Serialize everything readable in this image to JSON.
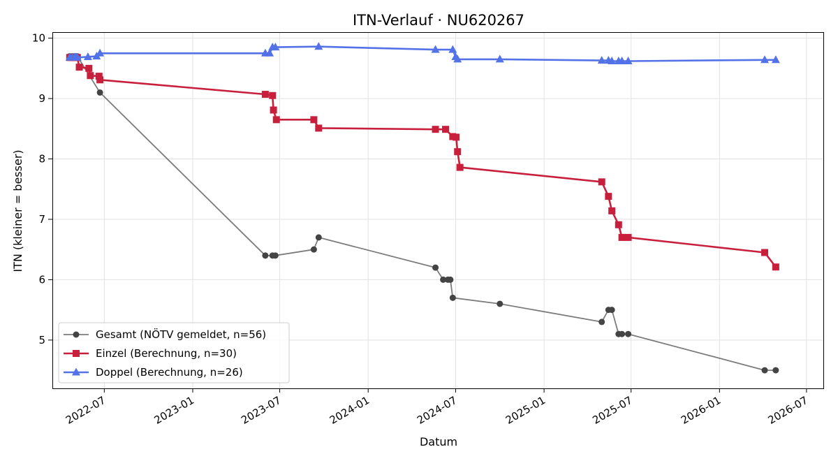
{
  "chart_data": {
    "type": "line",
    "title": "ITN-Verlauf · NU620267",
    "xlabel": "Datum",
    "ylabel": "ITN  (kleiner = besser)",
    "ylim": [
      4.2,
      10.1
    ],
    "xlim": [
      "2022-03-15",
      "2026-08-05"
    ],
    "grid": true,
    "legend_position": "lower-left",
    "x_ticks": [
      "2022-07",
      "2023-01",
      "2023-07",
      "2024-01",
      "2024-07",
      "2025-01",
      "2025-07",
      "2026-01",
      "2026-07"
    ],
    "y_ticks": [
      5,
      6,
      7,
      8,
      9,
      10
    ],
    "series": [
      {
        "name": "Gesamt (NÖTV gemeldet, n=56)",
        "color": "#444444",
        "marker": "circle",
        "line_alpha": 0.7,
        "points": [
          {
            "x": "2022-04-20",
            "y": 9.7
          },
          {
            "x": "2022-04-25",
            "y": 9.7
          },
          {
            "x": "2022-04-30",
            "y": 9.7
          },
          {
            "x": "2022-05-03",
            "y": 9.7
          },
          {
            "x": "2022-05-06",
            "y": 9.7
          },
          {
            "x": "2022-06-22",
            "y": 9.1
          },
          {
            "x": "2023-06-01",
            "y": 6.4
          },
          {
            "x": "2023-06-16",
            "y": 6.4
          },
          {
            "x": "2023-06-22",
            "y": 6.4
          },
          {
            "x": "2023-09-10",
            "y": 6.5
          },
          {
            "x": "2023-09-20",
            "y": 6.7
          },
          {
            "x": "2024-05-20",
            "y": 6.2
          },
          {
            "x": "2024-06-05",
            "y": 6.0
          },
          {
            "x": "2024-06-15",
            "y": 6.0
          },
          {
            "x": "2024-06-20",
            "y": 6.0
          },
          {
            "x": "2024-06-25",
            "y": 5.7
          },
          {
            "x": "2024-10-01",
            "y": 5.6
          },
          {
            "x": "2025-05-01",
            "y": 5.3
          },
          {
            "x": "2025-05-15",
            "y": 5.5
          },
          {
            "x": "2025-05-22",
            "y": 5.5
          },
          {
            "x": "2025-06-05",
            "y": 5.1
          },
          {
            "x": "2025-06-12",
            "y": 5.1
          },
          {
            "x": "2025-06-25",
            "y": 5.1
          },
          {
            "x": "2026-04-05",
            "y": 4.5
          },
          {
            "x": "2026-04-28",
            "y": 4.5
          }
        ]
      },
      {
        "name": "Einzel (Berechnung, n=30)",
        "color": "#c8203c",
        "marker": "square",
        "points": [
          {
            "x": "2022-04-20",
            "y": 9.68
          },
          {
            "x": "2022-04-25",
            "y": 9.68
          },
          {
            "x": "2022-04-30",
            "y": 9.68
          },
          {
            "x": "2022-05-03",
            "y": 9.68
          },
          {
            "x": "2022-05-06",
            "y": 9.68
          },
          {
            "x": "2022-05-10",
            "y": 9.52
          },
          {
            "x": "2022-05-30",
            "y": 9.5
          },
          {
            "x": "2022-06-02",
            "y": 9.38
          },
          {
            "x": "2022-06-20",
            "y": 9.37
          },
          {
            "x": "2022-06-22",
            "y": 9.31
          },
          {
            "x": "2023-06-01",
            "y": 9.07
          },
          {
            "x": "2023-06-16",
            "y": 9.05
          },
          {
            "x": "2023-06-18",
            "y": 8.81
          },
          {
            "x": "2023-06-24",
            "y": 8.65
          },
          {
            "x": "2023-09-10",
            "y": 8.65
          },
          {
            "x": "2023-09-20",
            "y": 8.51
          },
          {
            "x": "2024-05-20",
            "y": 8.49
          },
          {
            "x": "2024-06-10",
            "y": 8.49
          },
          {
            "x": "2024-06-25",
            "y": 8.37
          },
          {
            "x": "2024-07-02",
            "y": 8.36
          },
          {
            "x": "2024-07-05",
            "y": 8.12
          },
          {
            "x": "2024-07-10",
            "y": 7.86
          },
          {
            "x": "2025-05-01",
            "y": 7.62
          },
          {
            "x": "2025-05-15",
            "y": 7.38
          },
          {
            "x": "2025-05-22",
            "y": 7.14
          },
          {
            "x": "2025-06-05",
            "y": 6.91
          },
          {
            "x": "2025-06-12",
            "y": 6.7
          },
          {
            "x": "2025-06-25",
            "y": 6.7
          },
          {
            "x": "2026-04-05",
            "y": 6.45
          },
          {
            "x": "2026-04-28",
            "y": 6.21
          }
        ]
      },
      {
        "name": "Doppel (Berechnung, n=26)",
        "color": "#5472e8",
        "marker": "triangle",
        "points": [
          {
            "x": "2022-04-20",
            "y": 9.68
          },
          {
            "x": "2022-04-25",
            "y": 9.68
          },
          {
            "x": "2022-04-30",
            "y": 9.68
          },
          {
            "x": "2022-05-03",
            "y": 9.68
          },
          {
            "x": "2022-05-06",
            "y": 9.68
          },
          {
            "x": "2022-05-28",
            "y": 9.69
          },
          {
            "x": "2022-06-15",
            "y": 9.7
          },
          {
            "x": "2022-06-22",
            "y": 9.75
          },
          {
            "x": "2023-06-01",
            "y": 9.75
          },
          {
            "x": "2023-06-10",
            "y": 9.75
          },
          {
            "x": "2023-06-16",
            "y": 9.85
          },
          {
            "x": "2023-06-22",
            "y": 9.85
          },
          {
            "x": "2023-09-20",
            "y": 9.86
          },
          {
            "x": "2024-05-20",
            "y": 9.81
          },
          {
            "x": "2024-06-25",
            "y": 9.81
          },
          {
            "x": "2024-07-01",
            "y": 9.69
          },
          {
            "x": "2024-07-05",
            "y": 9.65
          },
          {
            "x": "2024-10-01",
            "y": 9.65
          },
          {
            "x": "2025-05-01",
            "y": 9.63
          },
          {
            "x": "2025-05-15",
            "y": 9.63
          },
          {
            "x": "2025-05-22",
            "y": 9.62
          },
          {
            "x": "2025-06-05",
            "y": 9.62
          },
          {
            "x": "2025-06-12",
            "y": 9.62
          },
          {
            "x": "2025-06-25",
            "y": 9.62
          },
          {
            "x": "2026-04-05",
            "y": 9.64
          },
          {
            "x": "2026-04-28",
            "y": 9.64
          }
        ]
      }
    ]
  }
}
